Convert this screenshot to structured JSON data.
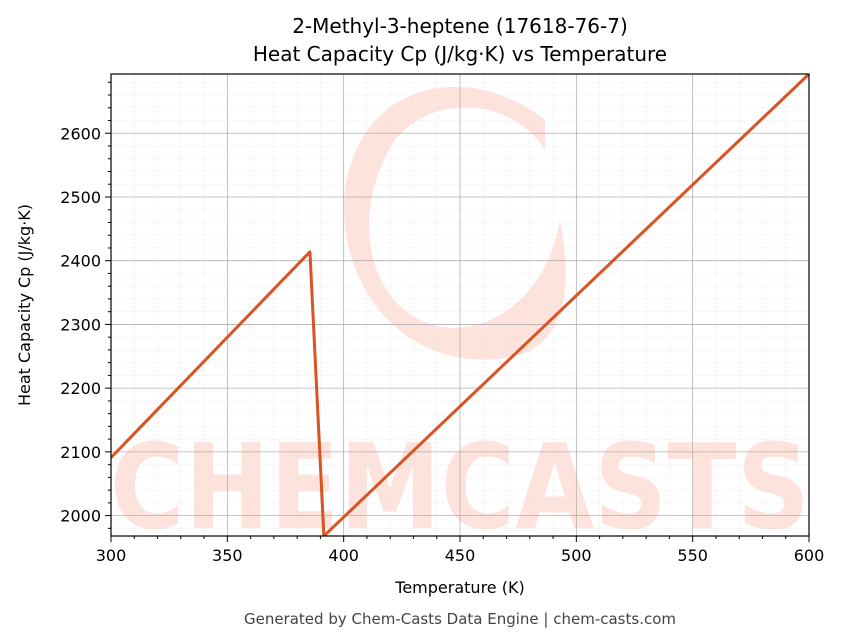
{
  "chart_data": {
    "type": "line",
    "title": "2-Methyl-3-heptene (17618-76-7)",
    "subtitle": "Heat Capacity Cp (J/kg·K) vs Temperature",
    "xlabel": "Temperature (K)",
    "ylabel": "Heat Capacity Cp (J/kg·K)",
    "xlim": [
      300,
      600
    ],
    "ylim": [
      1968,
      2693
    ],
    "xticks": [
      300,
      350,
      400,
      450,
      500,
      550,
      600
    ],
    "yticks": [
      2000,
      2100,
      2200,
      2300,
      2400,
      2500,
      2600
    ],
    "grid": true,
    "series": [
      {
        "color": "#d95323",
        "x": [
          300,
          385.5,
          391.5,
          600
        ],
        "y": [
          2091,
          2414,
          1968,
          2693
        ]
      }
    ]
  },
  "watermark": {
    "text": "CHEMCASTS",
    "color": "#fde3dc"
  },
  "footer": "Generated by Chem-Casts Data Engine | chem-casts.com"
}
